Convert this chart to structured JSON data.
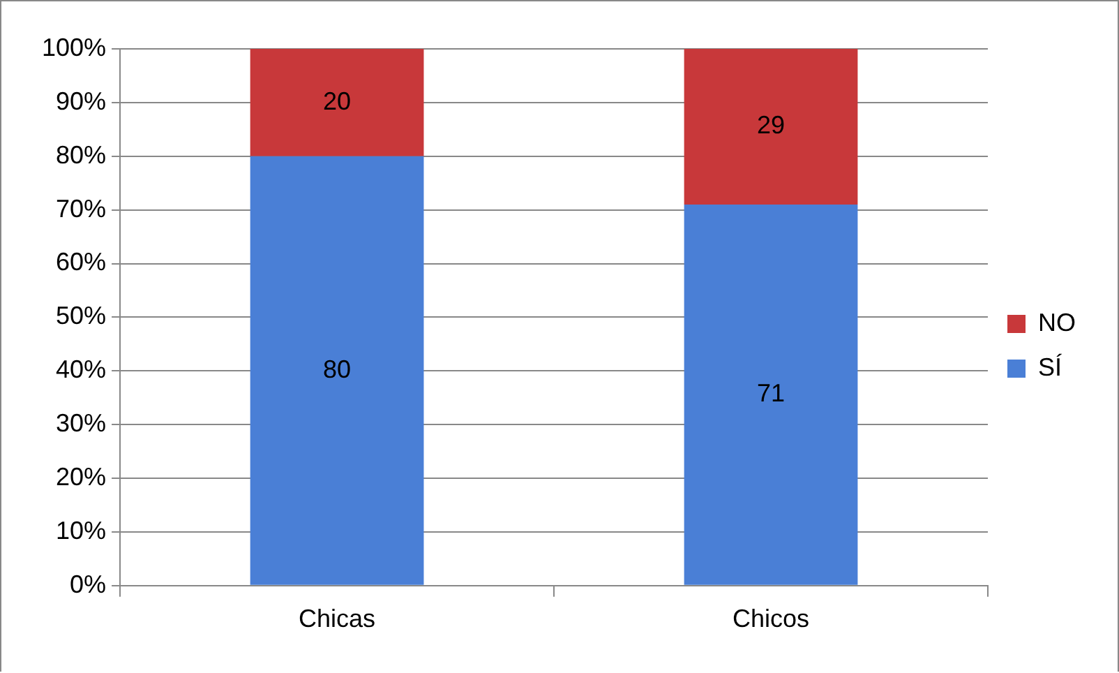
{
  "chart_data": {
    "type": "bar",
    "stacked": true,
    "categories": [
      "Chicas",
      "Chicos"
    ],
    "series": [
      {
        "name": "SÍ",
        "color": "#4a7fd6",
        "values": [
          80,
          71
        ]
      },
      {
        "name": "NO",
        "color": "#c8383a",
        "values": [
          20,
          29
        ]
      }
    ],
    "ylim": [
      0,
      100
    ],
    "yticks": [
      {
        "value": 0,
        "label": "0%"
      },
      {
        "value": 10,
        "label": "10%"
      },
      {
        "value": 20,
        "label": "20%"
      },
      {
        "value": 30,
        "label": "30%"
      },
      {
        "value": 40,
        "label": "40%"
      },
      {
        "value": 50,
        "label": "50%"
      },
      {
        "value": 60,
        "label": "60%"
      },
      {
        "value": 70,
        "label": "70%"
      },
      {
        "value": 80,
        "label": "80%"
      },
      {
        "value": 90,
        "label": "90%"
      },
      {
        "value": 100,
        "label": "100%"
      }
    ],
    "grid": "y",
    "legend": "right",
    "data_labels": true
  }
}
